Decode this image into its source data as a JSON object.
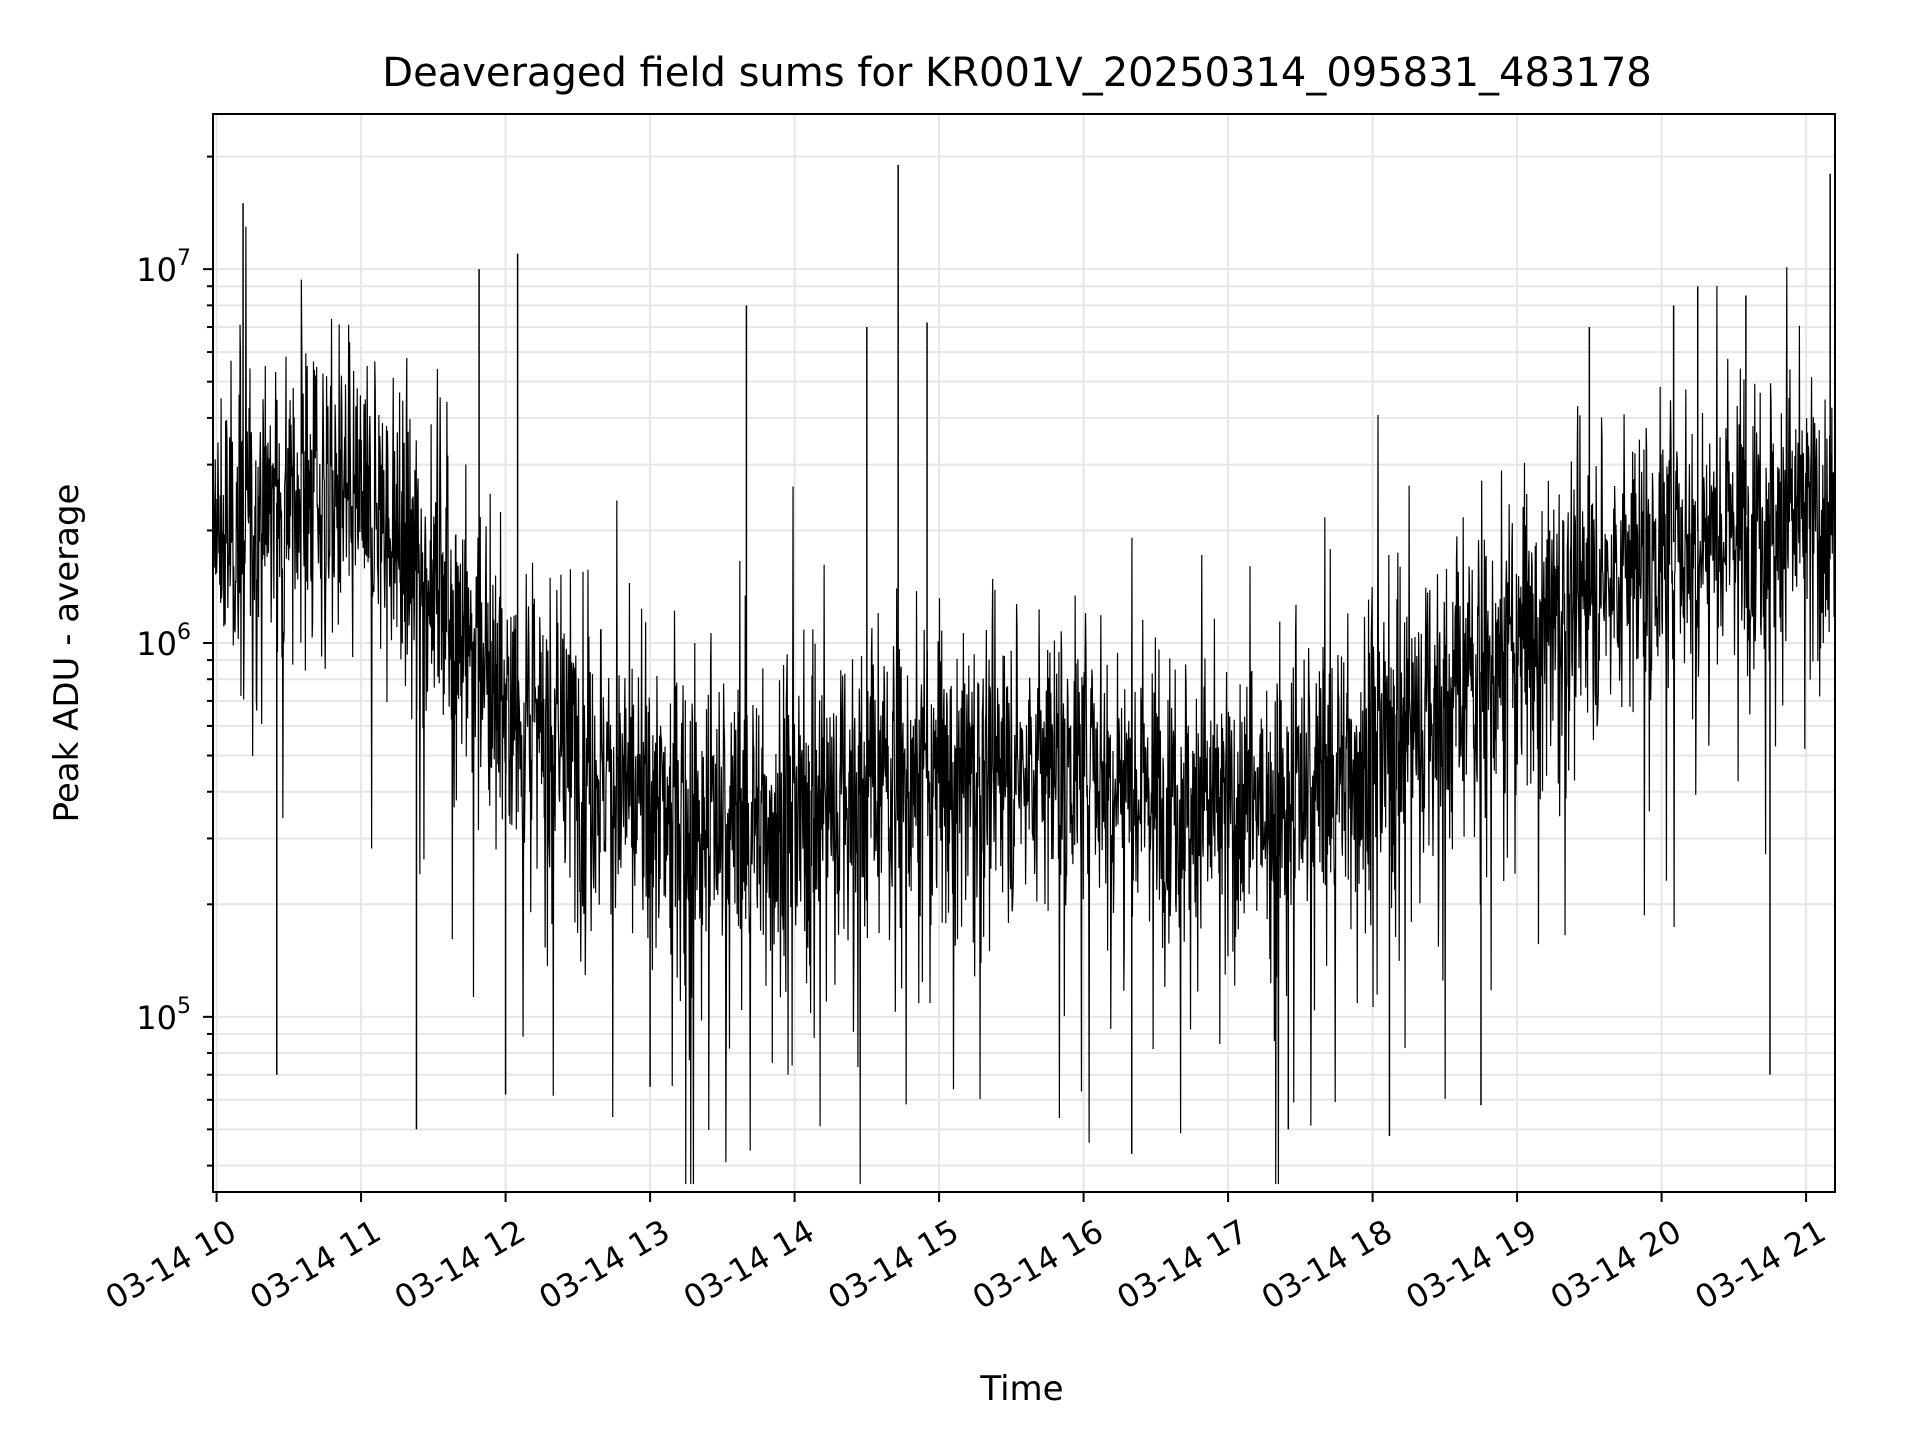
{
  "chart_data": {
    "type": "line",
    "title": "Deaveraged field sums for KR001V_20250314_095831_483178",
    "xlabel": "Time",
    "ylabel": "Peak ADU - average",
    "yscale": "log",
    "ylim": [
      34000,
      26000000
    ],
    "xlim": [
      "2025-03-14T09:58:31",
      "2025-03-14T21:12:00"
    ],
    "x_ticks": [
      {
        "t": "2025-03-14T10:00",
        "label": "03-14 10"
      },
      {
        "t": "2025-03-14T11:00",
        "label": "03-14 11"
      },
      {
        "t": "2025-03-14T12:00",
        "label": "03-14 12"
      },
      {
        "t": "2025-03-14T13:00",
        "label": "03-14 13"
      },
      {
        "t": "2025-03-14T14:00",
        "label": "03-14 14"
      },
      {
        "t": "2025-03-14T15:00",
        "label": "03-14 15"
      },
      {
        "t": "2025-03-14T16:00",
        "label": "03-14 16"
      },
      {
        "t": "2025-03-14T17:00",
        "label": "03-14 17"
      },
      {
        "t": "2025-03-14T18:00",
        "label": "03-14 18"
      },
      {
        "t": "2025-03-14T19:00",
        "label": "03-14 19"
      },
      {
        "t": "2025-03-14T20:00",
        "label": "03-14 20"
      },
      {
        "t": "2025-03-14T21:00",
        "label": "03-14 21"
      }
    ],
    "y_ticks": [
      {
        "value": 100000,
        "base": "10",
        "exp": "5"
      },
      {
        "value": 1000000,
        "base": "10",
        "exp": "6"
      },
      {
        "value": 10000000,
        "base": "10",
        "exp": "7"
      }
    ],
    "grid": true,
    "line_color": "#000000",
    "grid_color": "#e6e6e6",
    "series_envelope": {
      "x": [
        "2025-03-14T09:58:31",
        "2025-03-14T10:30",
        "2025-03-14T11:00",
        "2025-03-14T11:30",
        "2025-03-14T12:00",
        "2025-03-14T12:30",
        "2025-03-14T13:00",
        "2025-03-14T13:30",
        "2025-03-14T14:00",
        "2025-03-14T14:30",
        "2025-03-14T15:00",
        "2025-03-14T15:30",
        "2025-03-14T16:00",
        "2025-03-14T16:30",
        "2025-03-14T17:00",
        "2025-03-14T17:30",
        "2025-03-14T18:00",
        "2025-03-14T18:30",
        "2025-03-14T19:00",
        "2025-03-14T19:30",
        "2025-03-14T20:00",
        "2025-03-14T20:30",
        "2025-03-14T21:00",
        "2025-03-14T21:12"
      ],
      "median": [
        1800000,
        2500000,
        2400000,
        1500000,
        700000,
        500000,
        350000,
        330000,
        330000,
        420000,
        450000,
        460000,
        500000,
        420000,
        350000,
        400000,
        500000,
        700000,
        1000000,
        1400000,
        1800000,
        2200000,
        2200000,
        2000000
      ]
    },
    "spikes": [
      {
        "x": "2025-03-14T10:11",
        "y": 15000000
      },
      {
        "x": "2025-03-14T11:49",
        "y": 10000000
      },
      {
        "x": "2025-03-14T12:05",
        "y": 11000000
      },
      {
        "x": "2025-03-14T13:40",
        "y": 8000000
      },
      {
        "x": "2025-03-14T14:43",
        "y": 19000000
      },
      {
        "x": "2025-03-14T14:30",
        "y": 7000000
      },
      {
        "x": "2025-03-14T14:55",
        "y": 7200000
      },
      {
        "x": "2025-03-14T19:30",
        "y": 7000000
      },
      {
        "x": "2025-03-14T20:05",
        "y": 8000000
      },
      {
        "x": "2025-03-14T20:15",
        "y": 9000000
      },
      {
        "x": "2025-03-14T20:35",
        "y": 8500000
      },
      {
        "x": "2025-03-14T21:10",
        "y": 18000000
      }
    ],
    "dips": [
      {
        "x": "2025-03-14T10:25",
        "y": 70000
      },
      {
        "x": "2025-03-14T11:23",
        "y": 50000
      },
      {
        "x": "2025-03-14T12:00",
        "y": 62000
      },
      {
        "x": "2025-03-14T13:00",
        "y": 65000
      },
      {
        "x": "2025-03-14T16:20",
        "y": 43000
      },
      {
        "x": "2025-03-14T17:25",
        "y": 50000
      },
      {
        "x": "2025-03-14T18:07",
        "y": 48000
      },
      {
        "x": "2025-03-14T18:45",
        "y": 58000
      },
      {
        "x": "2025-03-14T20:45",
        "y": 70000
      }
    ]
  }
}
